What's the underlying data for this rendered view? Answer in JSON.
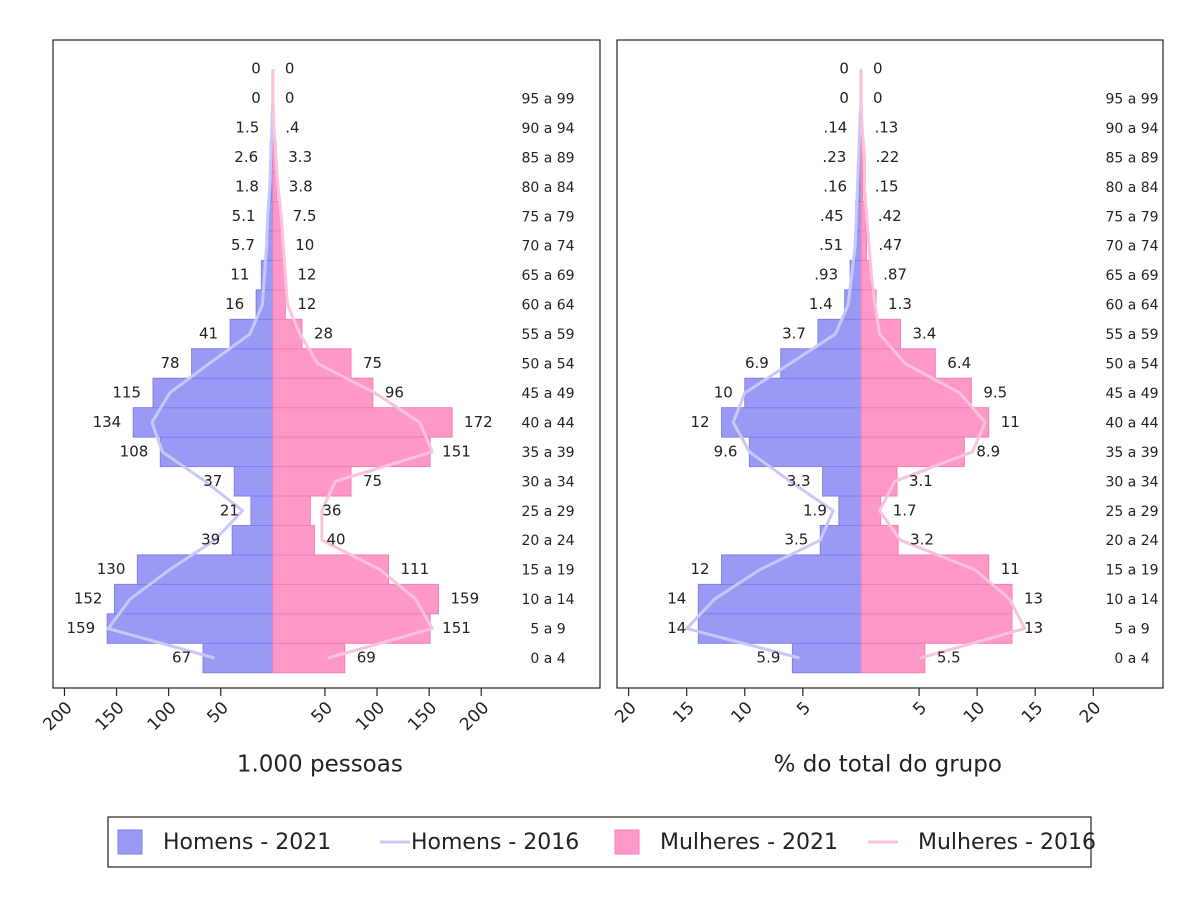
{
  "chart_data": [
    {
      "type": "pyramid",
      "xlabel": "1.000 pessoas",
      "categories": [
        "0 a 4",
        "5 a 9",
        "10 a 14",
        "15 a 19",
        "20 a 24",
        "25 a 29",
        "30 a 34",
        "35 a 39",
        "40 a 44",
        "45 a 49",
        "50 a 54",
        "55 a 59",
        "60 a 64",
        "65 a 69",
        "70 a 74",
        "75 a 79",
        "80 a 84",
        "85 a 89",
        "90 a 94",
        "95 a 99",
        null
      ],
      "xlim": [
        -211,
        314
      ],
      "xticks": [
        {
          "value": -200,
          "label": "200"
        },
        {
          "value": -150,
          "label": "150"
        },
        {
          "value": -100,
          "label": "100"
        },
        {
          "value": -50,
          "label": "50"
        },
        50,
        100,
        150,
        200
      ],
      "series": [
        {
          "name": "Homens - 2021",
          "type": "bar",
          "side": "left",
          "color": "#9a9af6",
          "values": [
            67,
            159,
            152,
            130,
            39,
            21,
            37,
            108,
            134,
            115,
            78,
            41,
            16,
            11,
            5.7,
            5.1,
            1.8,
            2.6,
            1.5,
            0,
            0
          ],
          "value_labels": [
            "67",
            "159",
            "152",
            "130",
            "39",
            "21",
            "37",
            "108",
            "134",
            "115",
            "78",
            "41",
            "16",
            "11",
            "5.7",
            "5.1",
            "1.8",
            "2.6",
            "1.5",
            "0",
            "0"
          ]
        },
        {
          "name": "Homens - 2016",
          "type": "line",
          "side": "left",
          "color": "#c9c9f9",
          "values": [
            56,
            158,
            137,
            99,
            56,
            29,
            65,
            106,
            116,
            99,
            61,
            22,
            10,
            8,
            6,
            5,
            3,
            2,
            1,
            0,
            0
          ]
        },
        {
          "name": "Mulheres - 2021",
          "type": "bar",
          "side": "right",
          "color": "#fe98c9",
          "values": [
            69,
            151,
            159,
            111,
            40,
            36,
            75,
            151,
            172,
            96,
            75,
            28,
            12,
            12,
            10,
            7.5,
            3.8,
            3.3,
            0.4,
            0,
            0
          ],
          "value_labels": [
            "69",
            "151",
            "159",
            "111",
            "40",
            "36",
            "75",
            "151",
            "172",
            "96",
            "75",
            "28",
            "12",
            "12",
            "10",
            "7.5",
            "3.8",
            "3.3",
            ".4",
            "0",
            "0"
          ]
        },
        {
          "name": "Mulheres - 2016",
          "type": "line",
          "side": "right",
          "color": "#f9c2dd",
          "values": [
            53,
            153,
            137,
            103,
            47,
            47,
            60,
            153,
            141,
            98,
            43,
            26,
            14,
            12,
            10,
            8,
            5,
            3,
            1,
            0,
            0
          ]
        }
      ]
    },
    {
      "type": "pyramid",
      "xlabel": "% do total do grupo",
      "categories": [
        "0 a 4",
        "5 a 9",
        "10 a 14",
        "15 a 19",
        "20 a 24",
        "25 a 29",
        "30 a 34",
        "35 a 39",
        "40 a 44",
        "45 a 49",
        "50 a 54",
        "55 a 59",
        "60 a 64",
        "65 a 69",
        "70 a 74",
        "75 a 79",
        "80 a 84",
        "85 a 89",
        "90 a 94",
        "95 a 99",
        null
      ],
      "xlim": [
        -21,
        26
      ],
      "xticks": [
        {
          "value": -20,
          "label": "20"
        },
        {
          "value": -15,
          "label": "15"
        },
        {
          "value": -10,
          "label": "10"
        },
        {
          "value": -5,
          "label": "5"
        },
        5,
        10,
        15,
        20
      ],
      "series": [
        {
          "type": "bar",
          "side": "left",
          "color": "#9a9af6",
          "values": [
            5.9,
            14,
            14,
            12,
            3.5,
            1.9,
            3.3,
            9.6,
            12,
            10,
            6.9,
            3.7,
            1.4,
            0.93,
            0.51,
            0.45,
            0.16,
            0.23,
            0.14,
            0,
            0
          ],
          "value_labels": [
            "5.9",
            "14",
            "14",
            "12",
            "3.5",
            "1.9",
            "3.3",
            "9.6",
            "12",
            "10",
            "6.9",
            "3.7",
            "1.4",
            ".93",
            ".51",
            ".45",
            ".16",
            ".23",
            ".14",
            "0",
            "0"
          ]
        },
        {
          "type": "line",
          "side": "left",
          "color": "#c9c9f9",
          "values": [
            5.3,
            15,
            12.6,
            8.7,
            3.5,
            2.4,
            6.1,
            9.6,
            11,
            10,
            6.1,
            2.2,
            1.1,
            0.8,
            0.5,
            0.4,
            0.3,
            0.2,
            0.1,
            0,
            0
          ]
        },
        {
          "type": "bar",
          "side": "right",
          "color": "#fe98c9",
          "values": [
            5.5,
            13,
            13,
            11,
            3.2,
            1.7,
            3.1,
            8.9,
            11,
            9.5,
            6.4,
            3.4,
            1.3,
            0.87,
            0.47,
            0.42,
            0.15,
            0.22,
            0.13,
            0,
            0
          ],
          "value_labels": [
            "5.5",
            "13",
            "13",
            "11",
            "3.2",
            "1.7",
            "3.1",
            "8.9",
            "11",
            "9.5",
            "6.4",
            "3.4",
            "1.3",
            ".87",
            ".47",
            ".42",
            ".15",
            ".22",
            ".13",
            "0",
            "0"
          ]
        },
        {
          "type": "line",
          "side": "right",
          "color": "#f9c2dd",
          "values": [
            5.1,
            14.1,
            12.8,
            9.8,
            3.4,
            1.6,
            2.9,
            9.6,
            10.7,
            8.5,
            3.8,
            1.6,
            1.2,
            0.9,
            0.7,
            0.5,
            0.3,
            0.3,
            0.1,
            0,
            0
          ]
        }
      ]
    }
  ]
}
